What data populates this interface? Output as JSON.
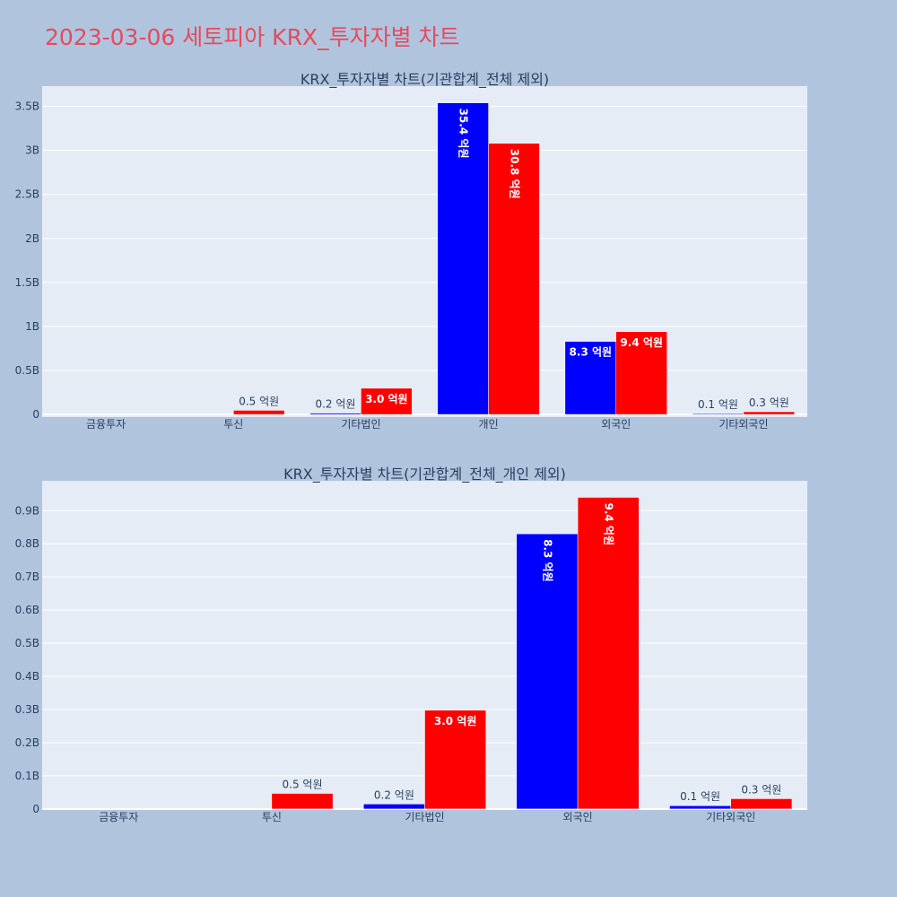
{
  "page_title": "2023-03-06 세토피아 KRX_투자자별 차트",
  "colors": {
    "page_background": "#b0c4de",
    "plot_background": "#e5ecf6",
    "title": "#e8495c",
    "series_a": "#0000ff",
    "series_b": "#ff0000"
  },
  "chart_data": [
    {
      "type": "bar",
      "title": "KRX_투자자별 차트(기관합계_전체 제외)",
      "xlabel": "",
      "ylabel": "",
      "categories": [
        "금융투자",
        "투신",
        "기타법인",
        "개인",
        "외국인",
        "기타외국인"
      ],
      "yticks": [
        0,
        500000000,
        1000000000,
        1500000000,
        2000000000,
        2500000000,
        3000000000,
        3500000000
      ],
      "ytick_labels": [
        "0",
        "0.5B",
        "1B",
        "1.5B",
        "2B",
        "2.5B",
        "3B",
        "3.5B"
      ],
      "ylim": [
        -30000000,
        3730000000
      ],
      "grid": true,
      "legend": "none",
      "series": [
        {
          "color": "#0000ff",
          "values": [
            0,
            0,
            15000000,
            3540000000,
            830000000,
            10000000
          ],
          "labels": [
            "",
            "",
            "0.2 억원",
            "35.4 억원",
            "8.3 억원",
            "0.1 억원"
          ]
        },
        {
          "color": "#ff0000",
          "values": [
            0,
            47000000,
            298000000,
            3080000000,
            940000000,
            31000000
          ],
          "labels": [
            "",
            "0.5 억원",
            "3.0 억원",
            "30.8 억원",
            "9.4 억원",
            "0.3 억원"
          ]
        }
      ]
    },
    {
      "type": "bar",
      "title": "KRX_투자자별 차트(기관합계_전체_개인 제외)",
      "xlabel": "",
      "ylabel": "",
      "categories": [
        "금융투자",
        "투신",
        "기타법인",
        "외국인",
        "기타외국인"
      ],
      "yticks": [
        0,
        100000000,
        200000000,
        300000000,
        400000000,
        500000000,
        600000000,
        700000000,
        800000000,
        900000000
      ],
      "ytick_labels": [
        "0",
        "0.1B",
        "0.2B",
        "0.3B",
        "0.4B",
        "0.5B",
        "0.6B",
        "0.7B",
        "0.8B",
        "0.9B"
      ],
      "ylim": [
        -3000000,
        990000000
      ],
      "grid": true,
      "legend": "none",
      "series": [
        {
          "color": "#0000ff",
          "values": [
            0,
            0,
            15000000,
            830000000,
            10000000
          ],
          "labels": [
            "",
            "",
            "0.2 억원",
            "8.3 억원",
            "0.1 억원"
          ]
        },
        {
          "color": "#ff0000",
          "values": [
            0,
            47000000,
            298000000,
            940000000,
            31000000
          ],
          "labels": [
            "",
            "0.5 억원",
            "3.0 억원",
            "9.4 억원",
            "0.3 억원"
          ]
        }
      ]
    }
  ]
}
